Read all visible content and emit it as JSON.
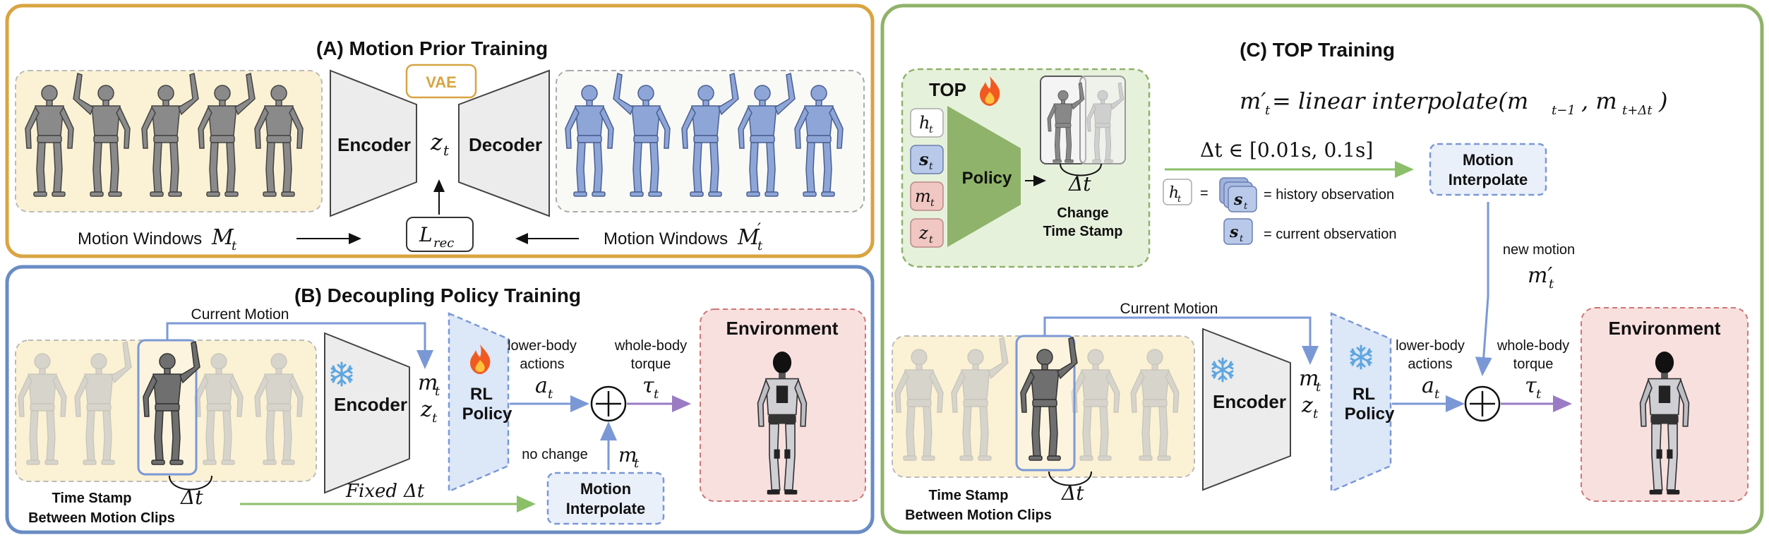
{
  "panelA": {
    "title": "(A) Motion Prior Training",
    "vae": "VAE",
    "encoder": "Encoder",
    "decoder": "Decoder",
    "latent": "z",
    "latent_sub": "t",
    "loss": "L",
    "loss_sub": "rec",
    "left_label": "Motion Windows",
    "left_sym": "M",
    "left_sym_sub": "t",
    "right_label": "Motion Windows",
    "right_sym": "M",
    "right_sym_sub": "t"
  },
  "panelB": {
    "title": "(B) Decoupling Policy Training",
    "current_motion": "Current Motion",
    "encoder": "Encoder",
    "rl1": "RL",
    "rl2": "Policy",
    "m": "m",
    "z": "z",
    "sub_t": "t",
    "lower1": "lower-body",
    "lower2": "actions",
    "a": "a",
    "whole1": "whole-body",
    "whole2": "torque",
    "tau": "τ",
    "environment": "Environment",
    "no_change": "no change",
    "fixed": "Fixed",
    "delta": "Δt",
    "mi1": "Motion",
    "mi2": "Interpolate",
    "ts1": "Time Stamp",
    "ts2": "Between Motion Clips"
  },
  "panelC": {
    "title": "(C) TOP Training",
    "top": "TOP",
    "policy": "Policy",
    "change1": "Change",
    "change2": "Time Stamp",
    "formula_lhs": "m′",
    "formula_mid": " = linear interpolate(m",
    "formula_s1": "t−1",
    "formula_comma": ", m",
    "formula_s2": "t+Δt",
    "formula_end": ")",
    "range": "Δt ∈ [0.01s, 0.1s]",
    "history": "= history observation",
    "current": "= current observation",
    "h": "h",
    "s": "s",
    "m": "m",
    "z": "z",
    "sub_t": "t",
    "mi1": "Motion",
    "mi2": "Interpolate",
    "new_motion": "new motion",
    "m_prime": "m′",
    "current_motion": "Current Motion",
    "encoder": "Encoder",
    "rl1": "RL",
    "rl2": "Policy",
    "lower1": "lower-body",
    "lower2": "actions",
    "a": "a",
    "whole1": "whole-body",
    "whole2": "torque",
    "tau": "τ",
    "environment": "Environment",
    "delta": "Δt",
    "ts1": "Time Stamp",
    "ts2": "Between Motion Clips"
  },
  "colors": {
    "panelA": "#d9a441",
    "panelB": "#6a8cc4",
    "panelC": "#8fb36a",
    "robot_gray": "#8a8a8a",
    "robot_blue": "#8ea5d8",
    "arrow_blue": "#7b98d6",
    "arrow_green": "#8cbf6a",
    "arrow_purple": "#9a7bc4"
  },
  "icons": [
    "snowflake-icon",
    "flame-icon",
    "plus-circle-icon",
    "robot-figure-icon"
  ]
}
